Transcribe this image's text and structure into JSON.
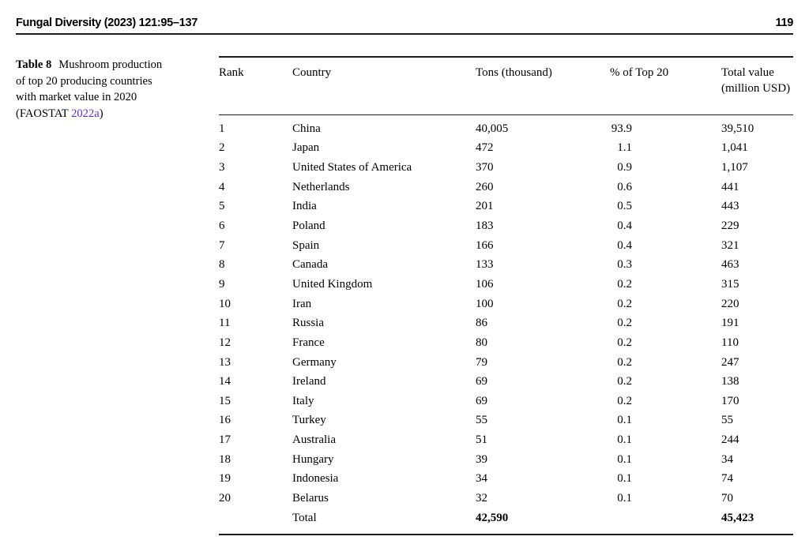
{
  "page_header": {
    "journal_ref": "Fungal Diversity (2023) 121:95–137",
    "page_number": "119"
  },
  "caption": {
    "label": "Table 8",
    "lines": [
      "Mushroom production",
      "of top 20 producing countries",
      "with market value in 2020"
    ],
    "source_prefix": "(FAOSTAT ",
    "source_link": "2022a",
    "source_suffix": ")"
  },
  "colors": {
    "link": "#5e2ce2",
    "text": "#000000",
    "rule": "#1c1c1c"
  },
  "table": {
    "headers": {
      "rank": "Rank",
      "country": "Country",
      "tons": "Tons (thousand)",
      "pct": "% of Top 20",
      "value": "Total value (million USD)"
    },
    "rows": [
      {
        "rank": "1",
        "country": "China",
        "tons": "40,005",
        "pct": "93.9",
        "value": "39,510"
      },
      {
        "rank": "2",
        "country": "Japan",
        "tons": "472",
        "pct": "1.1",
        "value": "1,041"
      },
      {
        "rank": "3",
        "country": "United States of America",
        "tons": "370",
        "pct": "0.9",
        "value": "1,107"
      },
      {
        "rank": "4",
        "country": "Netherlands",
        "tons": "260",
        "pct": "0.6",
        "value": "441"
      },
      {
        "rank": "5",
        "country": "India",
        "tons": "201",
        "pct": "0.5",
        "value": "443"
      },
      {
        "rank": "6",
        "country": "Poland",
        "tons": "183",
        "pct": "0.4",
        "value": "229"
      },
      {
        "rank": "7",
        "country": "Spain",
        "tons": "166",
        "pct": "0.4",
        "value": "321"
      },
      {
        "rank": "8",
        "country": "Canada",
        "tons": "133",
        "pct": "0.3",
        "value": "463"
      },
      {
        "rank": "9",
        "country": "United Kingdom",
        "tons": "106",
        "pct": "0.2",
        "value": "315"
      },
      {
        "rank": "10",
        "country": "Iran",
        "tons": "100",
        "pct": "0.2",
        "value": "220"
      },
      {
        "rank": "11",
        "country": "Russia",
        "tons": "86",
        "pct": "0.2",
        "value": "191"
      },
      {
        "rank": "12",
        "country": "France",
        "tons": "80",
        "pct": "0.2",
        "value": "110"
      },
      {
        "rank": "13",
        "country": "Germany",
        "tons": "79",
        "pct": "0.2",
        "value": "247"
      },
      {
        "rank": "14",
        "country": "Ireland",
        "tons": "69",
        "pct": "0.2",
        "value": "138"
      },
      {
        "rank": "15",
        "country": "Italy",
        "tons": "69",
        "pct": "0.2",
        "value": "170"
      },
      {
        "rank": "16",
        "country": "Turkey",
        "tons": "55",
        "pct": "0.1",
        "value": "55"
      },
      {
        "rank": "17",
        "country": "Australia",
        "tons": "51",
        "pct": "0.1",
        "value": "244"
      },
      {
        "rank": "18",
        "country": "Hungary",
        "tons": "39",
        "pct": "0.1",
        "value": "34"
      },
      {
        "rank": "19",
        "country": "Indonesia",
        "tons": "34",
        "pct": "0.1",
        "value": "74"
      },
      {
        "rank": "20",
        "country": "Belarus",
        "tons": "32",
        "pct": "0.1",
        "value": "70"
      }
    ],
    "total_row": {
      "label": "Total",
      "tons": "42,590",
      "value": "45,423"
    }
  }
}
